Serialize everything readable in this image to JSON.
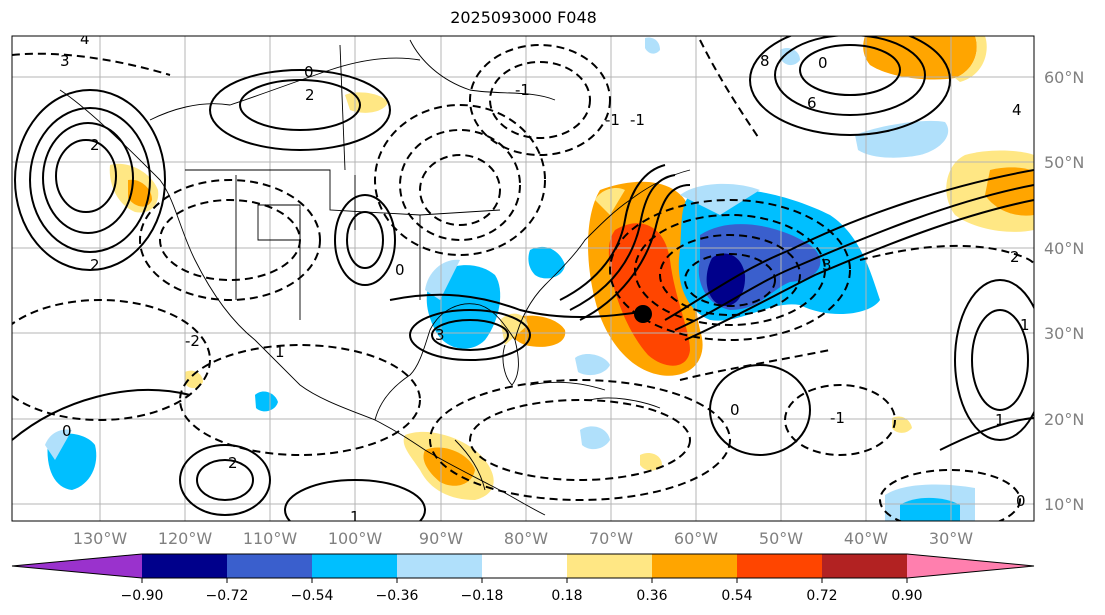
{
  "title": "2025093000 F048",
  "lon_labels": [
    "130°W",
    "120°W",
    "110°W",
    "100°W",
    "90°W",
    "80°W",
    "70°W",
    "60°W",
    "50°W",
    "40°W",
    "30°W"
  ],
  "lat_labels": [
    "60°N",
    "50°N",
    "40°N",
    "30°N",
    "20°N",
    "10°N"
  ],
  "colorbar": {
    "ticks": [
      "−0.90",
      "−0.72",
      "−0.54",
      "−0.36",
      "−0.18",
      "0.18",
      "0.36",
      "0.54",
      "0.72",
      "0.90"
    ],
    "colors": [
      "#9a32cd",
      "#00008b",
      "#3a5fcd",
      "#00bfff",
      "#b0e0fb",
      "#ffffff",
      "#ffe784",
      "#ffa500",
      "#ff4500",
      "#b22222",
      "#ff7fae"
    ]
  },
  "contour_labels": [
    "3",
    "4",
    "8",
    "0",
    "6",
    "2",
    "0",
    "2",
    "4",
    "-1",
    "0",
    "-1",
    "3",
    "2",
    "1",
    "-1",
    "3",
    "0",
    "2",
    "1",
    "-2",
    "0",
    "1",
    "0",
    "-1",
    "2",
    "1"
  ],
  "marker": "cyclone-center-dot"
}
